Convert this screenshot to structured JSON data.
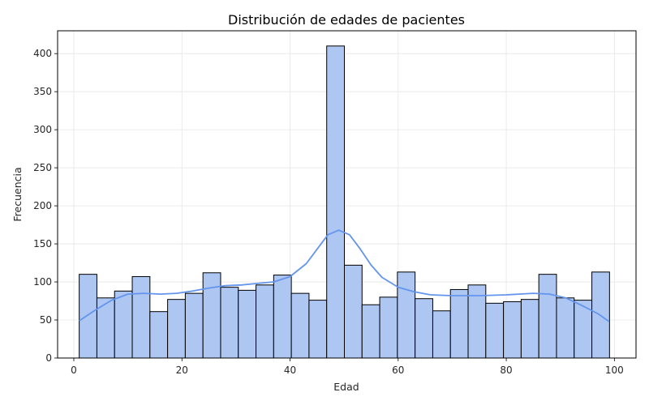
{
  "chart_data": {
    "type": "bar",
    "title": "Distribución de edades de pacientes",
    "xlabel": "Edad",
    "ylabel": "Frecuencia",
    "xlim": [
      -3,
      104
    ],
    "ylim": [
      0,
      430
    ],
    "xticks": [
      0,
      20,
      40,
      60,
      80,
      100
    ],
    "yticks": [
      0,
      50,
      100,
      150,
      200,
      250,
      300,
      350,
      400
    ],
    "grid": true,
    "bin_start": 1,
    "bin_width": 3.27,
    "values": [
      110,
      79,
      88,
      107,
      61,
      77,
      85,
      112,
      93,
      89,
      96,
      109,
      85,
      76,
      410,
      122,
      70,
      80,
      113,
      78,
      62,
      90,
      96,
      72,
      74,
      77,
      110,
      79,
      76,
      113
    ],
    "kde": {
      "x": [
        1,
        4,
        7,
        10,
        13,
        16,
        19,
        22,
        25,
        28,
        31,
        34,
        37,
        40,
        43,
        45,
        47,
        49,
        51,
        53,
        55,
        57,
        60,
        63,
        66,
        70,
        75,
        80,
        85,
        88,
        91,
        94,
        97,
        99
      ],
      "y": [
        49,
        63,
        76,
        84,
        85,
        84,
        85,
        88,
        92,
        95,
        96,
        98,
        100,
        107,
        124,
        143,
        162,
        168,
        162,
        143,
        122,
        106,
        93,
        87,
        83,
        82,
        82,
        83,
        85,
        84,
        79,
        69,
        58,
        48
      ]
    },
    "colors": {
      "bar_fill": "#aec6f2",
      "bar_edge": "#000000",
      "kde_line": "#6495ed",
      "grid": "#e6e6e6"
    }
  }
}
